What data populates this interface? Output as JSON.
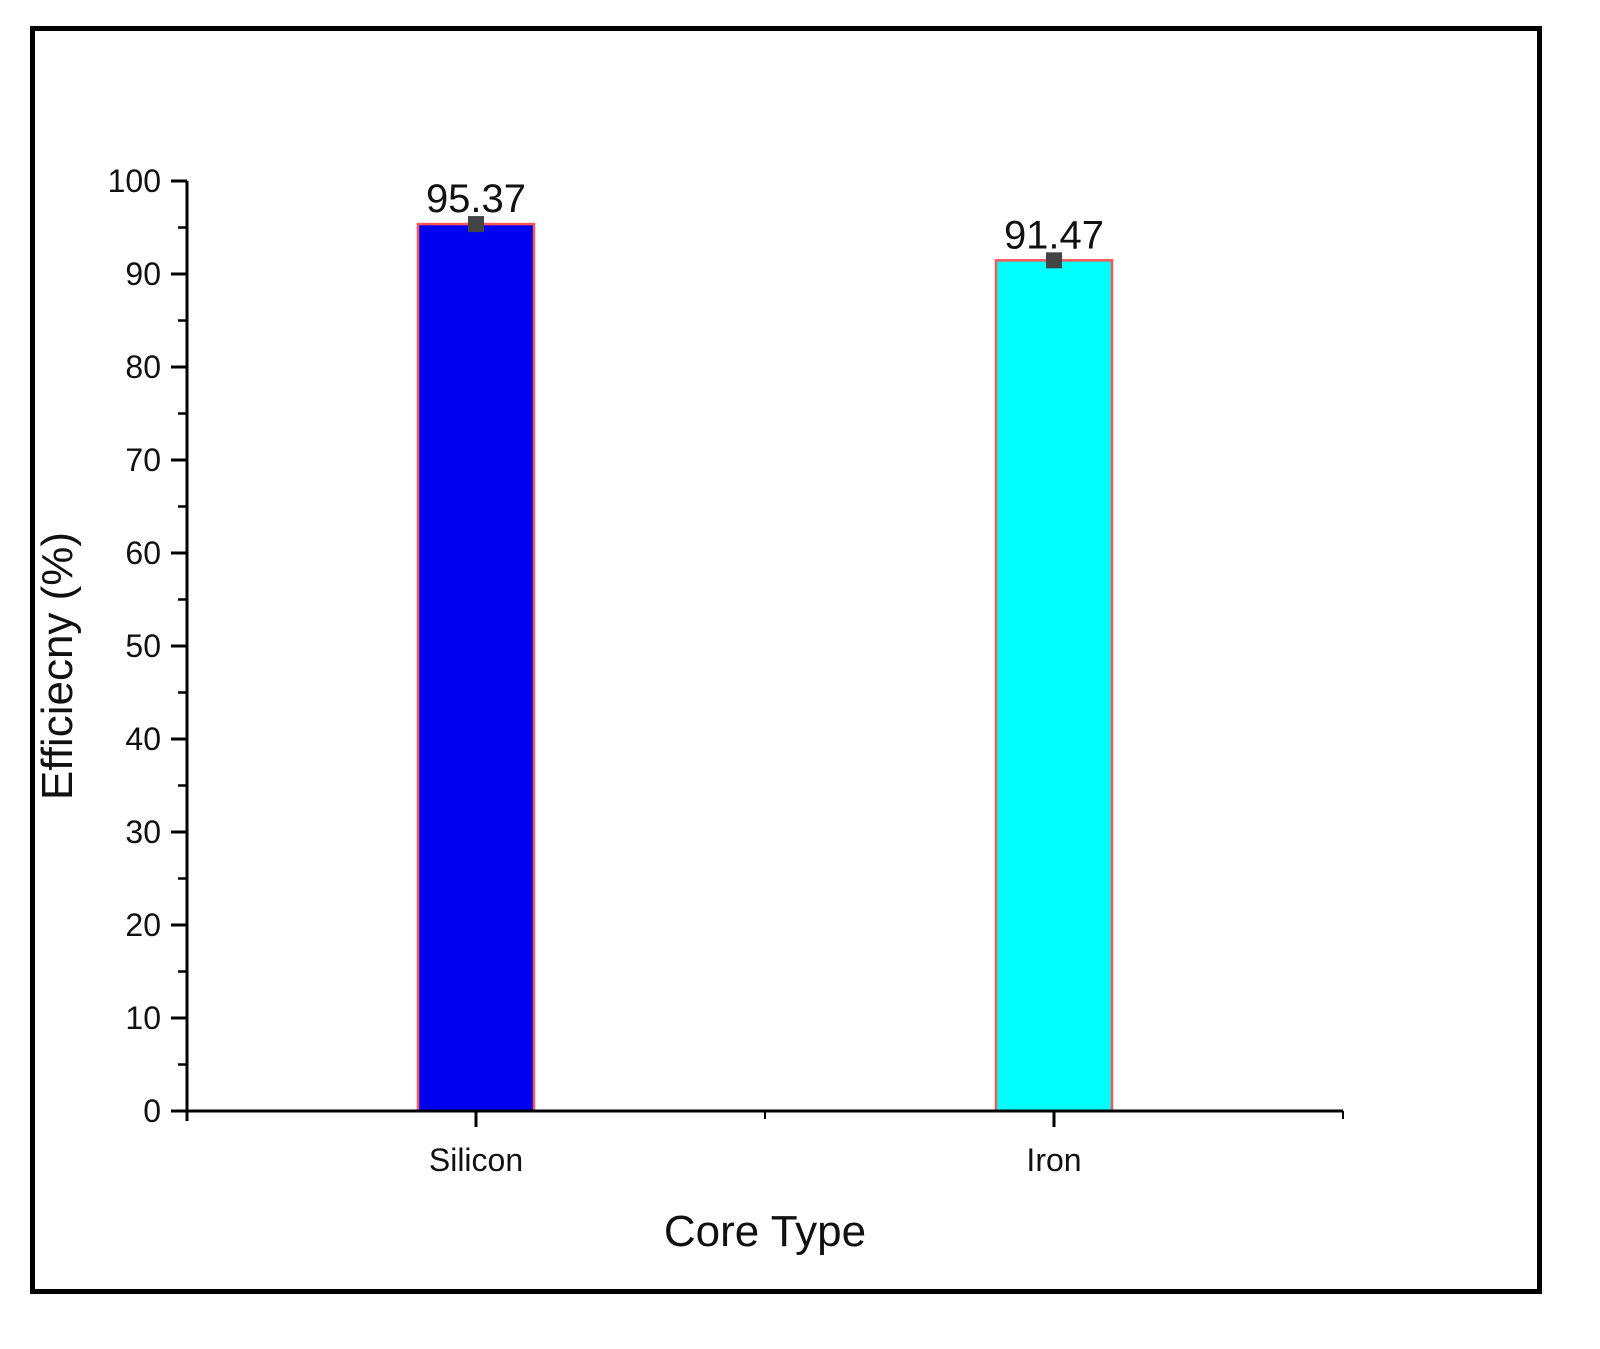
{
  "chart_data": {
    "type": "bar",
    "title": "",
    "xlabel": "Core Type",
    "ylabel": "Efficiecny (%)",
    "categories": [
      "Silicon",
      "Iron"
    ],
    "values": [
      95.37,
      91.47
    ],
    "data_labels": [
      "95.37",
      "91.47"
    ],
    "colors": [
      "#0000ee",
      "#00ffff"
    ],
    "edge_color": "#ff5555",
    "marker_color": "#444444",
    "ylim": [
      0,
      100
    ],
    "yticks": [
      0,
      10,
      20,
      30,
      40,
      50,
      60,
      70,
      80,
      90,
      100
    ],
    "grid": false,
    "legend": "none"
  }
}
